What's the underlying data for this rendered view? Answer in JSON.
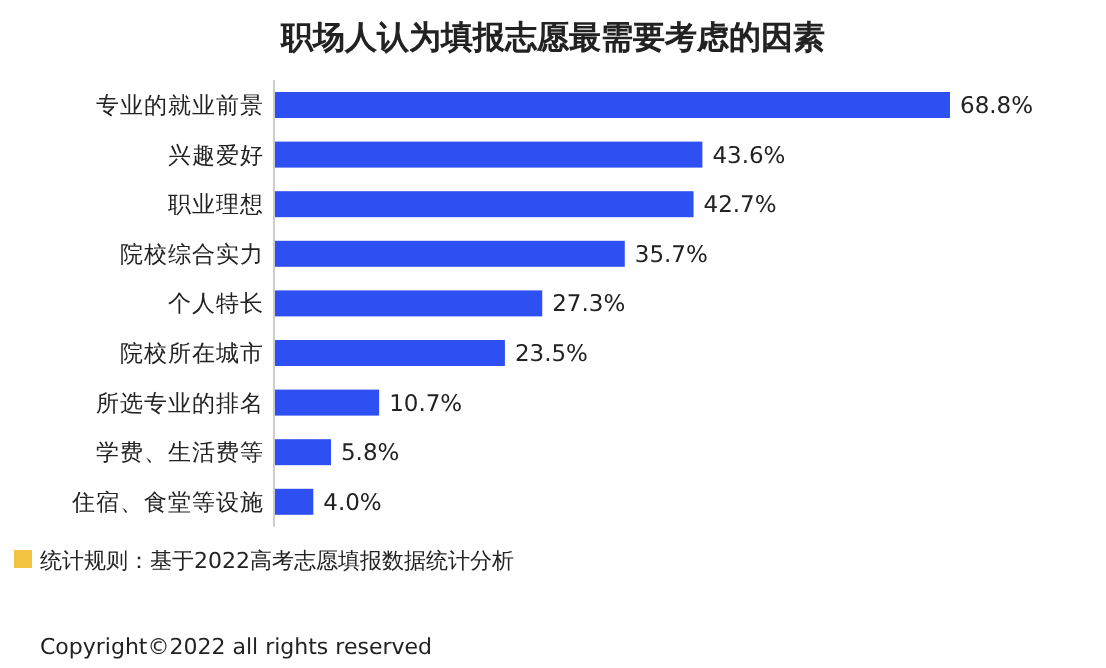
{
  "chart_data": {
    "type": "bar",
    "orientation": "horizontal",
    "title": "职场人认为填报志愿最需要考虑的因素",
    "categories": [
      "专业的就业前景",
      "兴趣爱好",
      "职业理想",
      "院校综合实力",
      "个人特长",
      "院校所在城市",
      "所选专业的排名",
      "学费、生活费等",
      "住宿、食堂等设施"
    ],
    "values": [
      68.8,
      43.6,
      42.7,
      35.7,
      27.3,
      23.5,
      10.7,
      5.8,
      4.0
    ],
    "value_labels": [
      "68.8%",
      "43.6%",
      "42.7%",
      "35.7%",
      "27.3%",
      "23.5%",
      "10.7%",
      "5.8%",
      "4.0%"
    ],
    "color": "#2e4ff2",
    "annotations": [
      "统计规则：基于2022高考志愿填报数据统计分析",
      "Copyright©2022 all rights reserved"
    ]
  }
}
